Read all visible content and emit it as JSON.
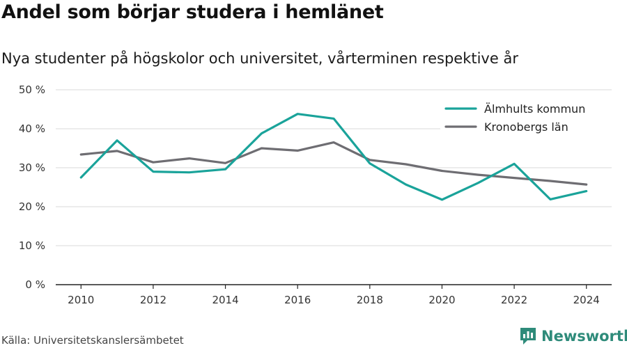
{
  "title": "Andel som börjar studera i hemlänet",
  "subtitle": "Nya studenter på högskolor och universitet, vårterminen respektive år",
  "source": "Källa: Universitetskanslersämbetet",
  "brand": {
    "name": "Newsworthy",
    "icon": "newsworthy-logo-icon",
    "color": "#2e8b7a"
  },
  "chart_data": {
    "type": "line",
    "x": [
      2010,
      2011,
      2012,
      2013,
      2014,
      2015,
      2016,
      2017,
      2018,
      2019,
      2020,
      2021,
      2022,
      2023,
      2024
    ],
    "x_ticks": [
      "2010",
      "2012",
      "2014",
      "2016",
      "2018",
      "2020",
      "2022",
      "2024"
    ],
    "y_ticks": [
      "0 %",
      "10 %",
      "20 %",
      "30 %",
      "40 %",
      "50 %"
    ],
    "ylim": [
      0,
      50
    ],
    "grid": true,
    "legend": "top-right",
    "series": [
      {
        "name": "Älmhults kommun",
        "color": "#1aa39a",
        "values": [
          27.5,
          37.0,
          29.0,
          28.8,
          29.6,
          38.8,
          43.8,
          42.6,
          31.1,
          25.7,
          21.8,
          26.1,
          31.0,
          21.9,
          24.0
        ]
      },
      {
        "name": "Kronobergs län",
        "color": "#6e6d72",
        "values": [
          33.4,
          34.3,
          31.4,
          32.4,
          31.2,
          35.0,
          34.4,
          36.5,
          32.0,
          30.9,
          29.2,
          28.2,
          27.4,
          26.6,
          25.7
        ]
      }
    ]
  }
}
